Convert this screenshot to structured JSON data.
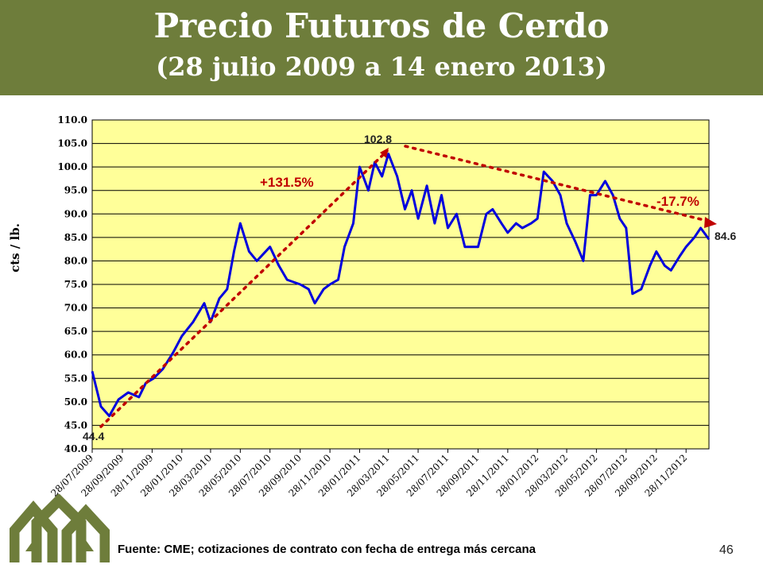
{
  "header": {
    "title": "Precio Futuros de Cerdo",
    "subtitle": "(28 julio 2009 a 14 enero 2013)"
  },
  "footer": {
    "source": "Fuente: CME; cotizaciones de contrato con fecha de entrega más cercana",
    "page_number": "46"
  },
  "colors": {
    "header_bg": "#6e7d3b",
    "plot_bg": "#ffff99",
    "series": "#0000dd",
    "annotation": "#c00000",
    "logo": "#6e7d3b"
  },
  "chart_data": {
    "type": "line",
    "title": "",
    "xlabel": "",
    "ylabel": "cts / lb.",
    "ylim": [
      40,
      110
    ],
    "yticks": [
      "40.0",
      "45.0",
      "50.0",
      "55.0",
      "60.0",
      "65.0",
      "70.0",
      "75.0",
      "80.0",
      "85.0",
      "90.0",
      "95.0",
      "100.0",
      "105.0",
      "110.0"
    ],
    "xticks": [
      "28/07/2009",
      "28/09/2009",
      "28/11/2009",
      "28/01/2010",
      "28/03/2010",
      "28/05/2010",
      "28/07/2010",
      "28/09/2010",
      "28/11/2010",
      "28/01/2011",
      "28/03/2011",
      "28/05/2011",
      "28/07/2011",
      "28/09/2011",
      "28/11/2011",
      "28/01/2012",
      "28/03/2012",
      "28/05/2012",
      "28/07/2012",
      "28/09/2012",
      "28/11/2012"
    ],
    "grid": true,
    "legend": "none",
    "series": [
      {
        "x": [
          "28/07/2009",
          "15/08/2009",
          "01/09/2009",
          "20/09/2009",
          "10/10/2009",
          "01/11/2009",
          "15/11/2009",
          "01/12/2009",
          "20/12/2009",
          "10/01/2010",
          "28/01/2010",
          "20/02/2010",
          "15/03/2010",
          "28/03/2010",
          "15/04/2010",
          "01/05/2010",
          "15/05/2010",
          "28/05/2010",
          "15/06/2010",
          "01/07/2010",
          "28/07/2010",
          "15/08/2010",
          "01/09/2010",
          "28/09/2010",
          "15/10/2010",
          "28/10/2010",
          "15/11/2010",
          "28/11/2010",
          "15/12/2010",
          "28/12/2010",
          "15/01/2011",
          "28/01/2011",
          "15/02/2011",
          "28/02/2011",
          "15/03/2011",
          "28/03/2011",
          "15/04/2011",
          "01/05/2011",
          "15/05/2011",
          "28/05/2011",
          "15/06/2011",
          "01/07/2011",
          "15/07/2011",
          "28/07/2011",
          "15/08/2011",
          "01/09/2011",
          "28/09/2011",
          "15/10/2011",
          "28/10/2011",
          "15/11/2011",
          "28/11/2011",
          "15/12/2011",
          "28/12/2011",
          "15/01/2012",
          "28/01/2012",
          "10/02/2012",
          "28/02/2012",
          "15/03/2012",
          "28/03/2012",
          "15/04/2012",
          "01/05/2012",
          "15/05/2012",
          "28/05/2012",
          "15/06/2012",
          "01/07/2012",
          "15/07/2012",
          "28/07/2012",
          "10/08/2012",
          "28/08/2012",
          "15/09/2012",
          "28/09/2012",
          "15/10/2012",
          "28/10/2012",
          "15/11/2012",
          "28/11/2012",
          "15/12/2012",
          "28/12/2012",
          "14/01/2013"
        ],
        "values": [
          56.5,
          49,
          47,
          50.5,
          52,
          51,
          54,
          55,
          57,
          60.5,
          64,
          67,
          71,
          67,
          72,
          74,
          82,
          88,
          82,
          80,
          83,
          79,
          76,
          75,
          74,
          71,
          74,
          75,
          76,
          83,
          88,
          100,
          95,
          101,
          98,
          102.8,
          98,
          91,
          95,
          89,
          96,
          88,
          94,
          87,
          90,
          83,
          83,
          90,
          91,
          88,
          86,
          88,
          87,
          88,
          89,
          99,
          97,
          94,
          88,
          84,
          80,
          94,
          94,
          97,
          94,
          89,
          87,
          73,
          74,
          79,
          82,
          79,
          78,
          81,
          83,
          85,
          87,
          84.6
        ]
      }
    ],
    "annotations": [
      {
        "text": "44.4"
      },
      {
        "text": "102.8"
      },
      {
        "text": "84.6"
      },
      {
        "text": "+131.5%"
      },
      {
        "text": "-17.7%"
      }
    ]
  }
}
